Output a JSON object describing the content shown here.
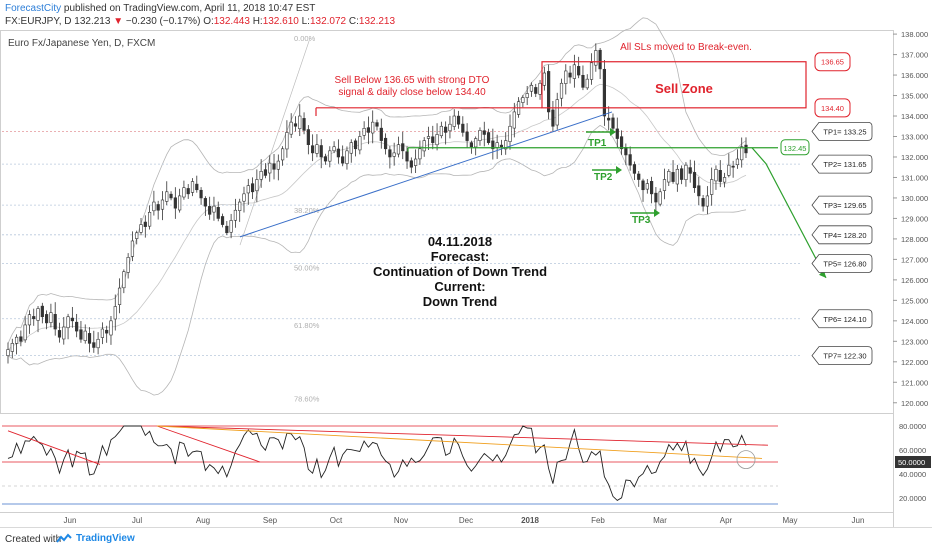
{
  "header": {
    "brand": "ForecastCity",
    "published": " published on TradingView.com, April 11, 2018 10:47 EST",
    "symbol": "FX:EURJPY, D",
    "last": "132.213",
    "change": "−0.230 (−0.17%)",
    "open_label": "O:",
    "open": "132.443",
    "high_label": "H:",
    "high": "132.610",
    "low_label": "L:",
    "low": "132.072",
    "close_label": "C:",
    "close": "132.213"
  },
  "footer": {
    "created": "Created with",
    "tradingview": "TradingView"
  },
  "colors": {
    "up": "#ffffff",
    "down": "#333333",
    "sell": "#e0232d",
    "tp_green": "#2ea02e",
    "trend_blue": "#3a6fc8",
    "fib_gray": "#b0b0b0",
    "tp_line": "#b8c8dc"
  },
  "chart_data": [
    {
      "type": "candlestick",
      "title": "Euro Fx/Japanese Yen, D, FXCM",
      "ylim": [
        119.5,
        138.2
      ],
      "y_ticks": [
        "138.000",
        "137.000",
        "136.000",
        "135.000",
        "134.000",
        "133.000",
        "132.000",
        "131.000",
        "130.000",
        "129.000",
        "128.000",
        "127.000",
        "126.000",
        "125.000",
        "124.000",
        "123.000",
        "122.000",
        "121.000",
        "120.000"
      ],
      "x_ticks": [
        "Jun",
        "Jul",
        "Aug",
        "Sep",
        "Oct",
        "Nov",
        "Dec",
        "2018",
        "Feb",
        "Mar",
        "Apr",
        "May",
        "Jun"
      ],
      "closes": [
        122.6,
        122.9,
        123.2,
        123.0,
        123.8,
        124.3,
        124.1,
        124.6,
        124.2,
        123.9,
        124.4,
        123.6,
        123.2,
        123.7,
        124.2,
        124.0,
        123.5,
        123.1,
        123.5,
        122.9,
        122.7,
        123.1,
        123.6,
        123.4,
        124.0,
        124.7,
        125.6,
        126.4,
        127.1,
        127.9,
        128.3,
        128.7,
        128.6,
        129.3,
        129.8,
        129.4,
        129.9,
        130.3,
        130.0,
        129.5,
        130.1,
        130.5,
        130.2,
        130.8,
        130.4,
        130.0,
        129.6,
        129.2,
        129.6,
        129.0,
        128.7,
        128.3,
        128.9,
        129.4,
        129.8,
        130.2,
        130.6,
        130.3,
        130.9,
        131.3,
        131.1,
        131.7,
        131.4,
        131.8,
        132.4,
        133.2,
        133.7,
        133.5,
        134.0,
        133.3,
        132.6,
        132.2,
        132.6,
        132.0,
        131.8,
        132.3,
        132.5,
        132.0,
        131.7,
        132.3,
        132.7,
        132.4,
        133.0,
        133.4,
        133.2,
        133.7,
        133.5,
        132.8,
        132.4,
        132.0,
        132.2,
        132.6,
        132.3,
        131.8,
        131.5,
        131.9,
        132.4,
        132.8,
        133.0,
        132.7,
        133.1,
        133.5,
        133.2,
        133.6,
        134.0,
        133.6,
        133.2,
        132.8,
        132.5,
        132.9,
        133.3,
        133.1,
        132.7,
        132.4,
        132.7,
        132.5,
        132.8,
        133.5,
        134.2,
        134.7,
        134.9,
        135.1,
        135.5,
        135.1,
        135.6,
        136.1,
        134.2,
        133.5,
        134.8,
        135.6,
        136.2,
        135.9,
        136.5,
        136.0,
        135.4,
        135.8,
        136.6,
        137.2,
        136.3,
        134.0,
        133.8,
        133.4,
        132.9,
        132.4,
        132.1,
        131.6,
        131.2,
        130.9,
        130.4,
        130.7,
        130.2,
        129.8,
        130.3,
        130.9,
        131.3,
        130.8,
        131.4,
        130.9,
        131.6,
        131.2,
        130.5,
        130.1,
        129.6,
        130.1,
        130.9,
        131.4,
        130.8,
        131.0,
        131.6,
        131.5,
        131.9,
        132.5,
        132.2
      ],
      "annotations": {
        "sell_text": [
          "Sell Below 136.65 with strong DTO",
          "signal & daily close below 134.40"
        ],
        "sls_text": "All SLs moved to Break-even.",
        "sell_zone": "Sell Zone",
        "sell_zone_top": "136.65",
        "sell_zone_bottom": "134.40",
        "entry_level": "132.45",
        "forecast": [
          "04.11.2018",
          "Forecast:",
          "Continuation of Down Trend",
          "Current:",
          "Down Trend"
        ],
        "tp_arrows": [
          "TP1",
          "TP2",
          "TP3"
        ],
        "targets": [
          {
            "label": "TP1= 133.25",
            "value": 133.25
          },
          {
            "label": "TP2= 131.65",
            "value": 131.65
          },
          {
            "label": "TP3= 129.65",
            "value": 129.65
          },
          {
            "label": "TP4= 128.20",
            "value": 128.2
          },
          {
            "label": "TP5= 126.80",
            "value": 126.8
          },
          {
            "label": "TP6= 124.10",
            "value": 124.1
          },
          {
            "label": "TP7= 122.30",
            "value": 122.3
          }
        ],
        "fib_labels": [
          {
            "label": "0.00%",
            "value": 137.8
          },
          {
            "label": "38.20%",
            "value": 129.4
          },
          {
            "label": "50.00%",
            "value": 126.6
          },
          {
            "label": "61.80%",
            "value": 123.8
          },
          {
            "label": "78.60%",
            "value": 120.2
          }
        ]
      }
    },
    {
      "type": "line",
      "title": "",
      "ylim": [
        10,
        90
      ],
      "y_ticks": [
        "80.0000",
        "60.0000",
        "50.0000",
        "40.0000",
        "20.0000"
      ],
      "last_value": "50.0000"
    }
  ]
}
